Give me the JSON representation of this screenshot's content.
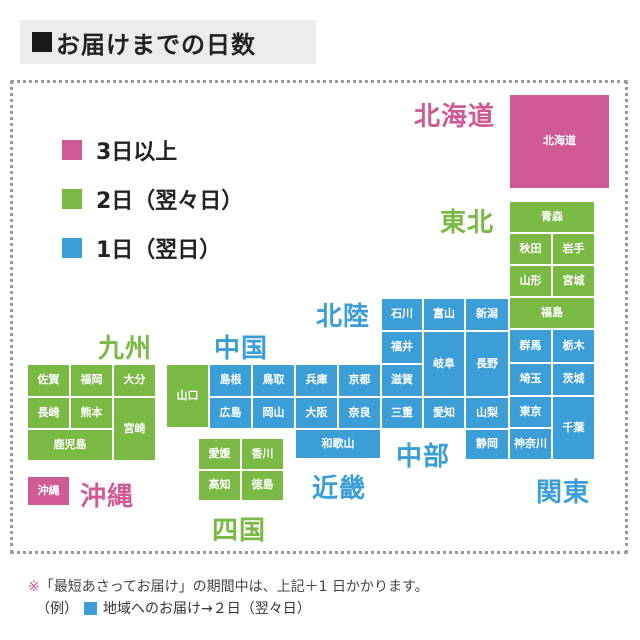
{
  "title": "お届けまでの日数",
  "colors": {
    "pink": "#cf5a95",
    "green": "#7ab944",
    "blue": "#3b9ed7"
  },
  "legend": [
    {
      "label": "3日以上",
      "color": "pink"
    },
    {
      "label": "2日（翌々日）",
      "color": "green"
    },
    {
      "label": "1日（翌日）",
      "color": "blue"
    }
  ],
  "regions": {
    "hokkaido": "北海道",
    "tohoku": "東北",
    "hokuriku": "北陸",
    "kyushu": "九州",
    "chugoku": "中国",
    "chubu": "中部",
    "kinki": "近畿",
    "kanto": "関東",
    "shikoku": "四国",
    "okinawa": "沖縄"
  },
  "prefectures": {
    "hokkaido": "北海道",
    "aomori": "青森",
    "akita": "秋田",
    "iwate": "岩手",
    "yamagata": "山形",
    "miyagi": "宮城",
    "fukushima": "福島",
    "ishikawa": "石川",
    "toyama": "富山",
    "niigata": "新潟",
    "fukui": "福井",
    "gifu": "岐阜",
    "nagano": "長野",
    "gunma": "群馬",
    "tochigi": "栃木",
    "saitama": "埼玉",
    "ibaraki": "茨城",
    "yamanashi": "山梨",
    "tokyo": "東京",
    "chiba": "千葉",
    "kanagawa": "神奈川",
    "shizuoka": "静岡",
    "aichi": "愛知",
    "shiga": "滋賀",
    "mie": "三重",
    "kyoto": "京都",
    "hyogo": "兵庫",
    "osaka": "大阪",
    "nara": "奈良",
    "wakayama": "和歌山",
    "tottori": "鳥取",
    "shimane": "島根",
    "okayama": "岡山",
    "hiroshima": "広島",
    "yamaguchi": "山口",
    "kagawa": "香川",
    "ehime": "愛媛",
    "tokushima": "徳島",
    "kochi": "高知",
    "fukuoka": "福岡",
    "saga": "佐賀",
    "oita": "大分",
    "nagasaki": "長崎",
    "kumamoto": "熊本",
    "miyazaki": "宮崎",
    "kagoshima": "鹿児島",
    "okinawa": "沖縄"
  },
  "notes": {
    "line1_mark": "※",
    "line1": "「最短あさってお届け」の期間中は、上記＋1 日かかります。",
    "line2_prefix": "（例）",
    "line2_suffix": "地域へのお届け→２日（翌々日）"
  }
}
